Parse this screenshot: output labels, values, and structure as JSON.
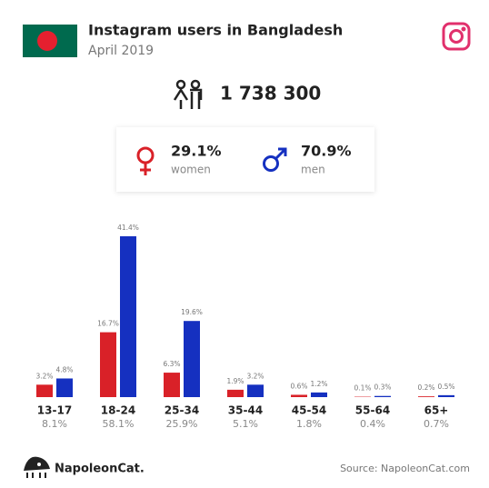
{
  "header": {
    "title": "Instagram users in Bangladesh",
    "subtitle": "April 2019"
  },
  "summary": {
    "total": "1 738 300",
    "women": {
      "share": "29.1%",
      "label": "women"
    },
    "men": {
      "share": "70.9%",
      "label": "men"
    }
  },
  "chart_data": {
    "type": "bar",
    "categories": [
      "13-17",
      "18-24",
      "25-34",
      "35-44",
      "45-54",
      "55-64",
      "65+"
    ],
    "category_totals": [
      "8.1%",
      "58.1%",
      "25.9%",
      "5.1%",
      "1.8%",
      "0.4%",
      "0.7%"
    ],
    "series": [
      {
        "name": "women",
        "color": "#d92128",
        "values": [
          3.2,
          16.7,
          6.3,
          1.9,
          0.6,
          0.1,
          0.2
        ],
        "value_labels": [
          "3.2%",
          "16.7%",
          "6.3%",
          "1.9%",
          "0.6%",
          "0.1%",
          "0.2%"
        ]
      },
      {
        "name": "men",
        "color": "#1530c0",
        "values": [
          4.8,
          41.4,
          19.6,
          3.2,
          1.2,
          0.3,
          0.5
        ],
        "value_labels": [
          "4.8%",
          "41.4%",
          "19.6%",
          "3.2%",
          "1.2%",
          "0.3%",
          "0.5%"
        ]
      }
    ]
  },
  "footer": {
    "brand": "NapoleonCat.",
    "source": "Source: NapoleonCat.com"
  }
}
